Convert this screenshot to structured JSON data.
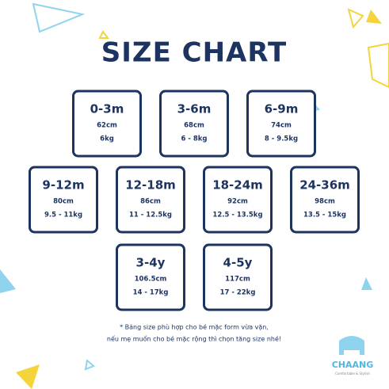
{
  "title": "SIZE CHART",
  "rows": [
    [
      {
        "size": "0-3m",
        "height": "62cm",
        "weight": "6kg"
      },
      {
        "size": "3-6m",
        "height": "68cm",
        "weight": "6 - 8kg"
      },
      {
        "size": "6-9m",
        "height": "74cm",
        "weight": "8 - 9.5kg"
      }
    ],
    [
      {
        "size": "9-12m",
        "height": "80cm",
        "weight": "9.5 - 11kg"
      },
      {
        "size": "12-18m",
        "height": "86cm",
        "weight": "11 - 12.5kg"
      },
      {
        "size": "18-24m",
        "height": "92cm",
        "weight": "12.5 - 13.5kg"
      },
      {
        "size": "24-36m",
        "height": "98cm",
        "weight": "13.5 - 15kg"
      }
    ],
    [
      {
        "size": "3-4y",
        "height": "106.5cm",
        "weight": "14 - 17kg"
      },
      {
        "size": "4-5y",
        "height": "117cm",
        "weight": "17 - 22kg"
      }
    ]
  ],
  "note": [
    "* Bảng size phù hợp cho bé mặc form vừa vặn,",
    "nếu mẹ muốn cho bé mặc rộng thì chọn tăng size nhé!"
  ],
  "brand": {
    "name": "CHAANG",
    "tagline": "Comfortable & Stylish"
  }
}
